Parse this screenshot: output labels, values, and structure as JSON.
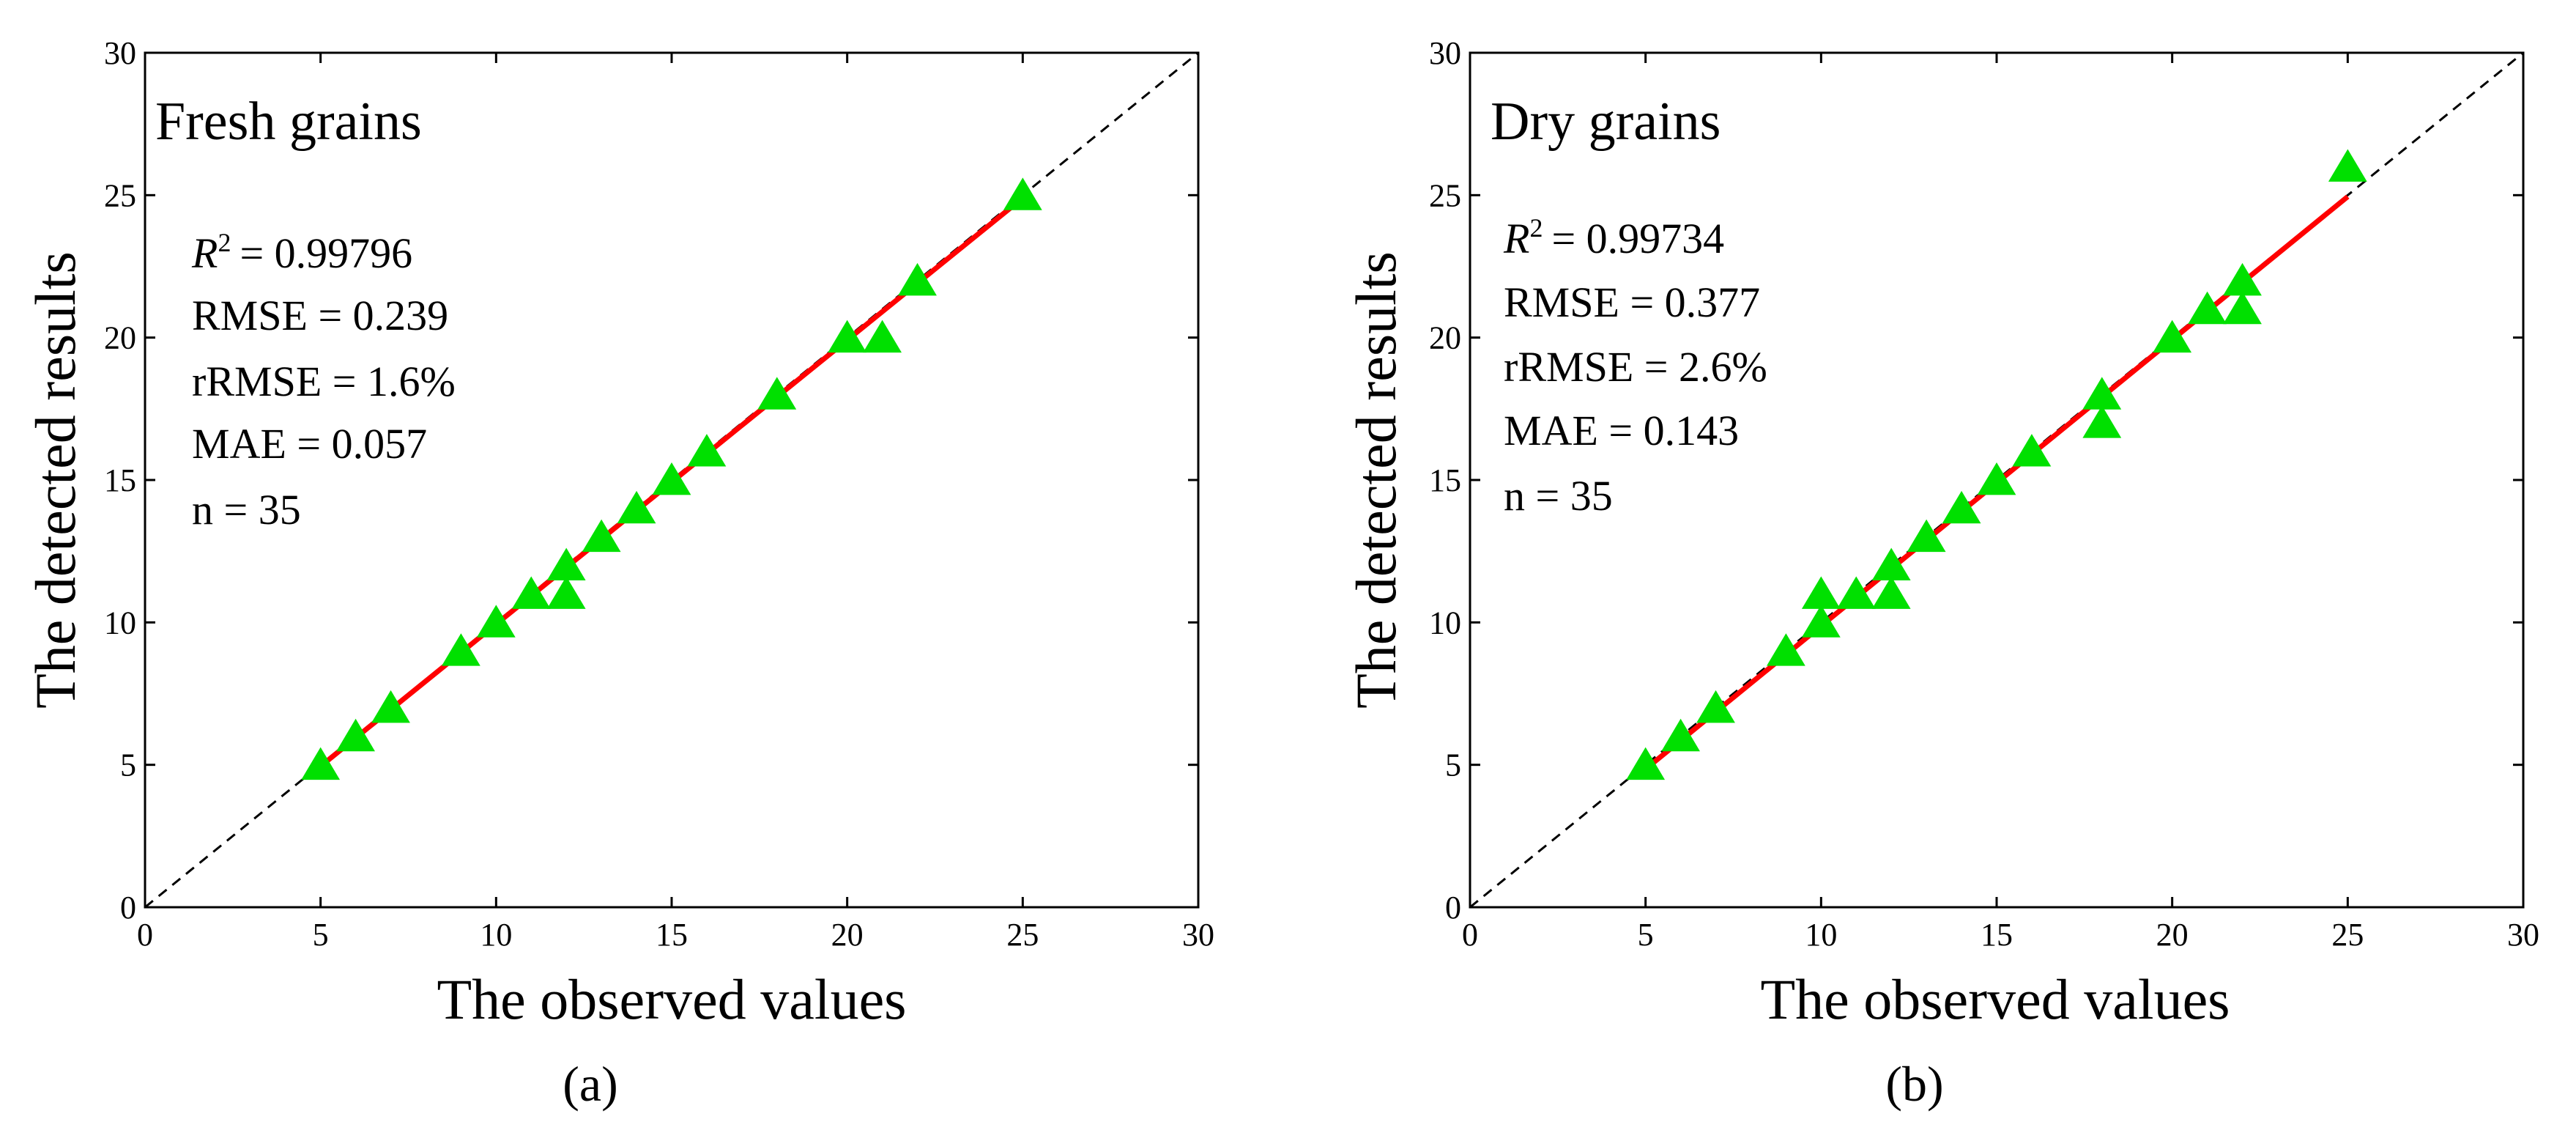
{
  "chart_data": [
    {
      "type": "scatter",
      "panel_label": "(a)",
      "title": "Fresh grains",
      "xlabel": "The observed values",
      "ylabel": "The detected results",
      "xlim": [
        0,
        30
      ],
      "ylim": [
        0,
        30
      ],
      "xticks": [
        "0",
        "5",
        "10",
        "15",
        "20",
        "25",
        "30"
      ],
      "yticks": [
        "0",
        "5",
        "10",
        "15",
        "20",
        "25",
        "30"
      ],
      "grid": false,
      "stats": {
        "r2": "= 0.99796",
        "rmse": "RMSE = 0.239",
        "rrmse": "rRMSE = 1.6%",
        "mae": "MAE = 0.057",
        "n": "n = 35"
      },
      "points": [
        [
          5,
          5
        ],
        [
          6,
          6
        ],
        [
          7,
          7
        ],
        [
          9,
          9
        ],
        [
          10,
          10
        ],
        [
          11,
          11
        ],
        [
          12,
          11
        ],
        [
          12,
          12
        ],
        [
          13,
          13
        ],
        [
          14,
          14
        ],
        [
          15,
          15
        ],
        [
          16,
          16
        ],
        [
          18,
          18
        ],
        [
          20,
          20
        ],
        [
          21,
          20
        ],
        [
          22,
          22
        ],
        [
          25,
          25
        ]
      ],
      "fit_line": [
        [
          5,
          4.95
        ],
        [
          25,
          24.9
        ]
      ],
      "reference_line": [
        [
          0,
          0
        ],
        [
          30,
          30
        ]
      ],
      "colors": {
        "points": "#00e000",
        "fit": "#ff0000",
        "reference": "#000000"
      }
    },
    {
      "type": "scatter",
      "panel_label": "(b)",
      "title": "Dry grains",
      "xlabel": "The observed values",
      "ylabel": "The detected results",
      "xlim": [
        0,
        30
      ],
      "ylim": [
        0,
        30
      ],
      "xticks": [
        "0",
        "5",
        "10",
        "15",
        "20",
        "25",
        "30"
      ],
      "yticks": [
        "0",
        "5",
        "10",
        "15",
        "20",
        "25",
        "30"
      ],
      "grid": false,
      "stats": {
        "r2": "= 0.99734",
        "rmse": "RMSE = 0.377",
        "rrmse": "rRMSE = 2.6%",
        "mae": "MAE = 0.143",
        "n": "n = 35"
      },
      "points": [
        [
          5,
          5
        ],
        [
          6,
          6
        ],
        [
          7,
          7
        ],
        [
          9,
          9
        ],
        [
          10,
          10
        ],
        [
          10,
          11
        ],
        [
          11,
          11
        ],
        [
          12,
          11
        ],
        [
          12,
          12
        ],
        [
          13,
          13
        ],
        [
          14,
          14
        ],
        [
          15,
          15
        ],
        [
          16,
          16
        ],
        [
          18,
          17
        ],
        [
          18,
          18
        ],
        [
          20,
          20
        ],
        [
          21,
          21
        ],
        [
          22,
          21
        ],
        [
          22,
          22
        ],
        [
          25,
          26
        ]
      ],
      "fit_line": [
        [
          5,
          4.85
        ],
        [
          25,
          24.95
        ]
      ],
      "reference_line": [
        [
          0,
          0
        ],
        [
          30,
          30
        ]
      ],
      "colors": {
        "points": "#00e000",
        "fit": "#ff0000",
        "reference": "#000000"
      }
    }
  ]
}
